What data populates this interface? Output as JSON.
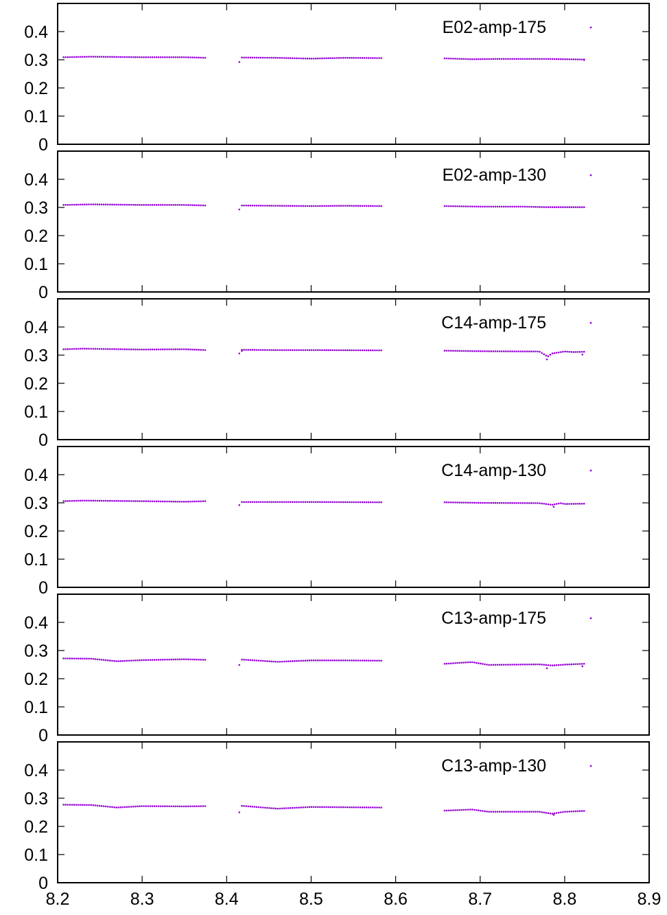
{
  "style": {
    "point_color": "#9400D3",
    "axis_color": "#000000"
  },
  "chart_data": [
    {
      "type": "scatter",
      "legend": "E02-amp-175",
      "legend_position": "top-right",
      "xlim": [
        8.2,
        8.9
      ],
      "ylim": [
        0,
        0.5
      ],
      "yticks": [
        0,
        0.1,
        0.2,
        0.3,
        0.4
      ],
      "ytick_labels": [
        "0",
        "0.1",
        "0.2",
        "0.3",
        "0.4"
      ],
      "xticks": [
        8.2,
        8.3,
        8.4,
        8.5,
        8.6,
        8.7,
        8.8,
        8.9
      ],
      "show_xtick_labels": false,
      "segments": [
        {
          "x_start": 8.207,
          "x_end": 8.376,
          "profile": [
            [
              8.207,
              0.309
            ],
            [
              8.24,
              0.311
            ],
            [
              8.3,
              0.309
            ],
            [
              8.35,
              0.309
            ],
            [
              8.376,
              0.307
            ]
          ]
        },
        {
          "x_start": 8.418,
          "x_end": 8.583,
          "profile": [
            [
              8.418,
              0.308
            ],
            [
              8.46,
              0.307
            ],
            [
              8.5,
              0.304
            ],
            [
              8.54,
              0.307
            ],
            [
              8.583,
              0.306
            ]
          ]
        },
        {
          "x_start": 8.658,
          "x_end": 8.823,
          "profile": [
            [
              8.658,
              0.305
            ],
            [
              8.69,
              0.302
            ],
            [
              8.72,
              0.303
            ],
            [
              8.78,
              0.303
            ],
            [
              8.823,
              0.301
            ]
          ]
        }
      ],
      "outliers": [
        [
          8.415,
          0.292
        ],
        [
          8.823,
          0.299
        ]
      ]
    },
    {
      "type": "scatter",
      "legend": "E02-amp-130",
      "legend_position": "top-right",
      "xlim": [
        8.2,
        8.9
      ],
      "ylim": [
        0,
        0.5
      ],
      "yticks": [
        0,
        0.1,
        0.2,
        0.3,
        0.4
      ],
      "ytick_labels": [
        "0",
        "0.1",
        "0.2",
        "0.3",
        "0.4"
      ],
      "xticks": [
        8.2,
        8.3,
        8.4,
        8.5,
        8.6,
        8.7,
        8.8,
        8.9
      ],
      "show_xtick_labels": false,
      "segments": [
        {
          "x_start": 8.207,
          "x_end": 8.376,
          "profile": [
            [
              8.207,
              0.309
            ],
            [
              8.24,
              0.311
            ],
            [
              8.3,
              0.309
            ],
            [
              8.35,
              0.309
            ],
            [
              8.376,
              0.307
            ]
          ]
        },
        {
          "x_start": 8.418,
          "x_end": 8.583,
          "profile": [
            [
              8.418,
              0.307
            ],
            [
              8.46,
              0.306
            ],
            [
              8.5,
              0.305
            ],
            [
              8.54,
              0.306
            ],
            [
              8.583,
              0.305
            ]
          ]
        },
        {
          "x_start": 8.658,
          "x_end": 8.823,
          "profile": [
            [
              8.658,
              0.305
            ],
            [
              8.7,
              0.303
            ],
            [
              8.75,
              0.303
            ],
            [
              8.78,
              0.301
            ],
            [
              8.823,
              0.301
            ]
          ]
        }
      ],
      "outliers": [
        [
          8.415,
          0.293
        ]
      ]
    },
    {
      "type": "scatter",
      "legend": "C14-amp-175",
      "legend_position": "top-right",
      "xlim": [
        8.2,
        8.9
      ],
      "ylim": [
        0,
        0.5
      ],
      "yticks": [
        0,
        0.1,
        0.2,
        0.3,
        0.4
      ],
      "ytick_labels": [
        "0",
        "0.1",
        "0.2",
        "0.3",
        "0.4"
      ],
      "xticks": [
        8.2,
        8.3,
        8.4,
        8.5,
        8.6,
        8.7,
        8.8,
        8.9
      ],
      "show_xtick_labels": false,
      "segments": [
        {
          "x_start": 8.207,
          "x_end": 8.376,
          "profile": [
            [
              8.207,
              0.321
            ],
            [
              8.23,
              0.323
            ],
            [
              8.3,
              0.32
            ],
            [
              8.35,
              0.321
            ],
            [
              8.376,
              0.318
            ]
          ]
        },
        {
          "x_start": 8.418,
          "x_end": 8.583,
          "profile": [
            [
              8.418,
              0.319
            ],
            [
              8.46,
              0.318
            ],
            [
              8.5,
              0.318
            ],
            [
              8.583,
              0.317
            ]
          ]
        },
        {
          "x_start": 8.658,
          "x_end": 8.823,
          "profile": [
            [
              8.658,
              0.316
            ],
            [
              8.7,
              0.314
            ],
            [
              8.77,
              0.313
            ],
            [
              8.78,
              0.295
            ],
            [
              8.785,
              0.306
            ],
            [
              8.8,
              0.313
            ],
            [
              8.81,
              0.311
            ],
            [
              8.823,
              0.312
            ]
          ]
        }
      ],
      "outliers": [
        [
          8.415,
          0.306
        ],
        [
          8.418,
          0.315
        ],
        [
          8.779,
          0.285
        ],
        [
          8.821,
          0.302
        ]
      ]
    },
    {
      "type": "scatter",
      "legend": "C14-amp-130",
      "legend_position": "top-right",
      "xlim": [
        8.2,
        8.9
      ],
      "ylim": [
        0,
        0.5
      ],
      "yticks": [
        0,
        0.1,
        0.2,
        0.3,
        0.4
      ],
      "ytick_labels": [
        "0",
        "0.1",
        "0.2",
        "0.3",
        "0.4"
      ],
      "xticks": [
        8.2,
        8.3,
        8.4,
        8.5,
        8.6,
        8.7,
        8.8,
        8.9
      ],
      "show_xtick_labels": false,
      "segments": [
        {
          "x_start": 8.207,
          "x_end": 8.376,
          "profile": [
            [
              8.207,
              0.306
            ],
            [
              8.23,
              0.308
            ],
            [
              8.3,
              0.306
            ],
            [
              8.35,
              0.304
            ],
            [
              8.376,
              0.306
            ]
          ]
        },
        {
          "x_start": 8.418,
          "x_end": 8.583,
          "profile": [
            [
              8.418,
              0.303
            ],
            [
              8.46,
              0.303
            ],
            [
              8.5,
              0.303
            ],
            [
              8.583,
              0.302
            ]
          ]
        },
        {
          "x_start": 8.658,
          "x_end": 8.823,
          "profile": [
            [
              8.658,
              0.302
            ],
            [
              8.7,
              0.3
            ],
            [
              8.77,
              0.299
            ],
            [
              8.785,
              0.293
            ],
            [
              8.795,
              0.299
            ],
            [
              8.8,
              0.296
            ],
            [
              8.823,
              0.297
            ]
          ]
        }
      ],
      "outliers": [
        [
          8.415,
          0.292
        ],
        [
          8.787,
          0.286
        ]
      ]
    },
    {
      "type": "scatter",
      "legend": "C13-amp-175",
      "legend_position": "top-right",
      "xlim": [
        8.2,
        8.9
      ],
      "ylim": [
        0,
        0.5
      ],
      "yticks": [
        0,
        0.1,
        0.2,
        0.3,
        0.4
      ],
      "ytick_labels": [
        "0",
        "0.1",
        "0.2",
        "0.3",
        "0.4"
      ],
      "xticks": [
        8.2,
        8.3,
        8.4,
        8.5,
        8.6,
        8.7,
        8.8,
        8.9
      ],
      "show_xtick_labels": false,
      "segments": [
        {
          "x_start": 8.207,
          "x_end": 8.376,
          "profile": [
            [
              8.207,
              0.272
            ],
            [
              8.24,
              0.271
            ],
            [
              8.27,
              0.262
            ],
            [
              8.3,
              0.266
            ],
            [
              8.35,
              0.269
            ],
            [
              8.376,
              0.267
            ]
          ]
        },
        {
          "x_start": 8.418,
          "x_end": 8.583,
          "profile": [
            [
              8.418,
              0.268
            ],
            [
              8.46,
              0.26
            ],
            [
              8.5,
              0.265
            ],
            [
              8.54,
              0.265
            ],
            [
              8.583,
              0.264
            ]
          ]
        },
        {
          "x_start": 8.658,
          "x_end": 8.823,
          "profile": [
            [
              8.658,
              0.253
            ],
            [
              8.69,
              0.259
            ],
            [
              8.71,
              0.249
            ],
            [
              8.77,
              0.251
            ],
            [
              8.785,
              0.247
            ],
            [
              8.8,
              0.25
            ],
            [
              8.823,
              0.253
            ]
          ]
        }
      ],
      "outliers": [
        [
          8.415,
          0.249
        ],
        [
          8.779,
          0.237
        ],
        [
          8.821,
          0.244
        ]
      ]
    },
    {
      "type": "scatter",
      "legend": "C13-amp-130",
      "legend_position": "top-right",
      "xlim": [
        8.2,
        8.9
      ],
      "ylim": [
        0,
        0.5
      ],
      "yticks": [
        0,
        0.1,
        0.2,
        0.3,
        0.4
      ],
      "ytick_labels": [
        "0",
        "0.1",
        "0.2",
        "0.3",
        "0.4"
      ],
      "xticks": [
        8.2,
        8.3,
        8.4,
        8.5,
        8.6,
        8.7,
        8.8,
        8.9
      ],
      "xtick_labels": [
        "8.2",
        "8.3",
        "8.4",
        "8.5",
        "8.6",
        "8.7",
        "8.8",
        "8.9"
      ],
      "show_xtick_labels": true,
      "segments": [
        {
          "x_start": 8.207,
          "x_end": 8.376,
          "profile": [
            [
              8.207,
              0.277
            ],
            [
              8.24,
              0.276
            ],
            [
              8.27,
              0.267
            ],
            [
              8.3,
              0.272
            ],
            [
              8.35,
              0.271
            ],
            [
              8.376,
              0.272
            ]
          ]
        },
        {
          "x_start": 8.418,
          "x_end": 8.583,
          "profile": [
            [
              8.418,
              0.273
            ],
            [
              8.46,
              0.263
            ],
            [
              8.5,
              0.269
            ],
            [
              8.54,
              0.268
            ],
            [
              8.583,
              0.267
            ]
          ]
        },
        {
          "x_start": 8.658,
          "x_end": 8.823,
          "profile": [
            [
              8.658,
              0.256
            ],
            [
              8.69,
              0.26
            ],
            [
              8.71,
              0.252
            ],
            [
              8.77,
              0.252
            ],
            [
              8.785,
              0.245
            ],
            [
              8.8,
              0.252
            ],
            [
              8.823,
              0.255
            ]
          ]
        }
      ],
      "outliers": [
        [
          8.415,
          0.25
        ],
        [
          8.787,
          0.241
        ]
      ]
    }
  ]
}
